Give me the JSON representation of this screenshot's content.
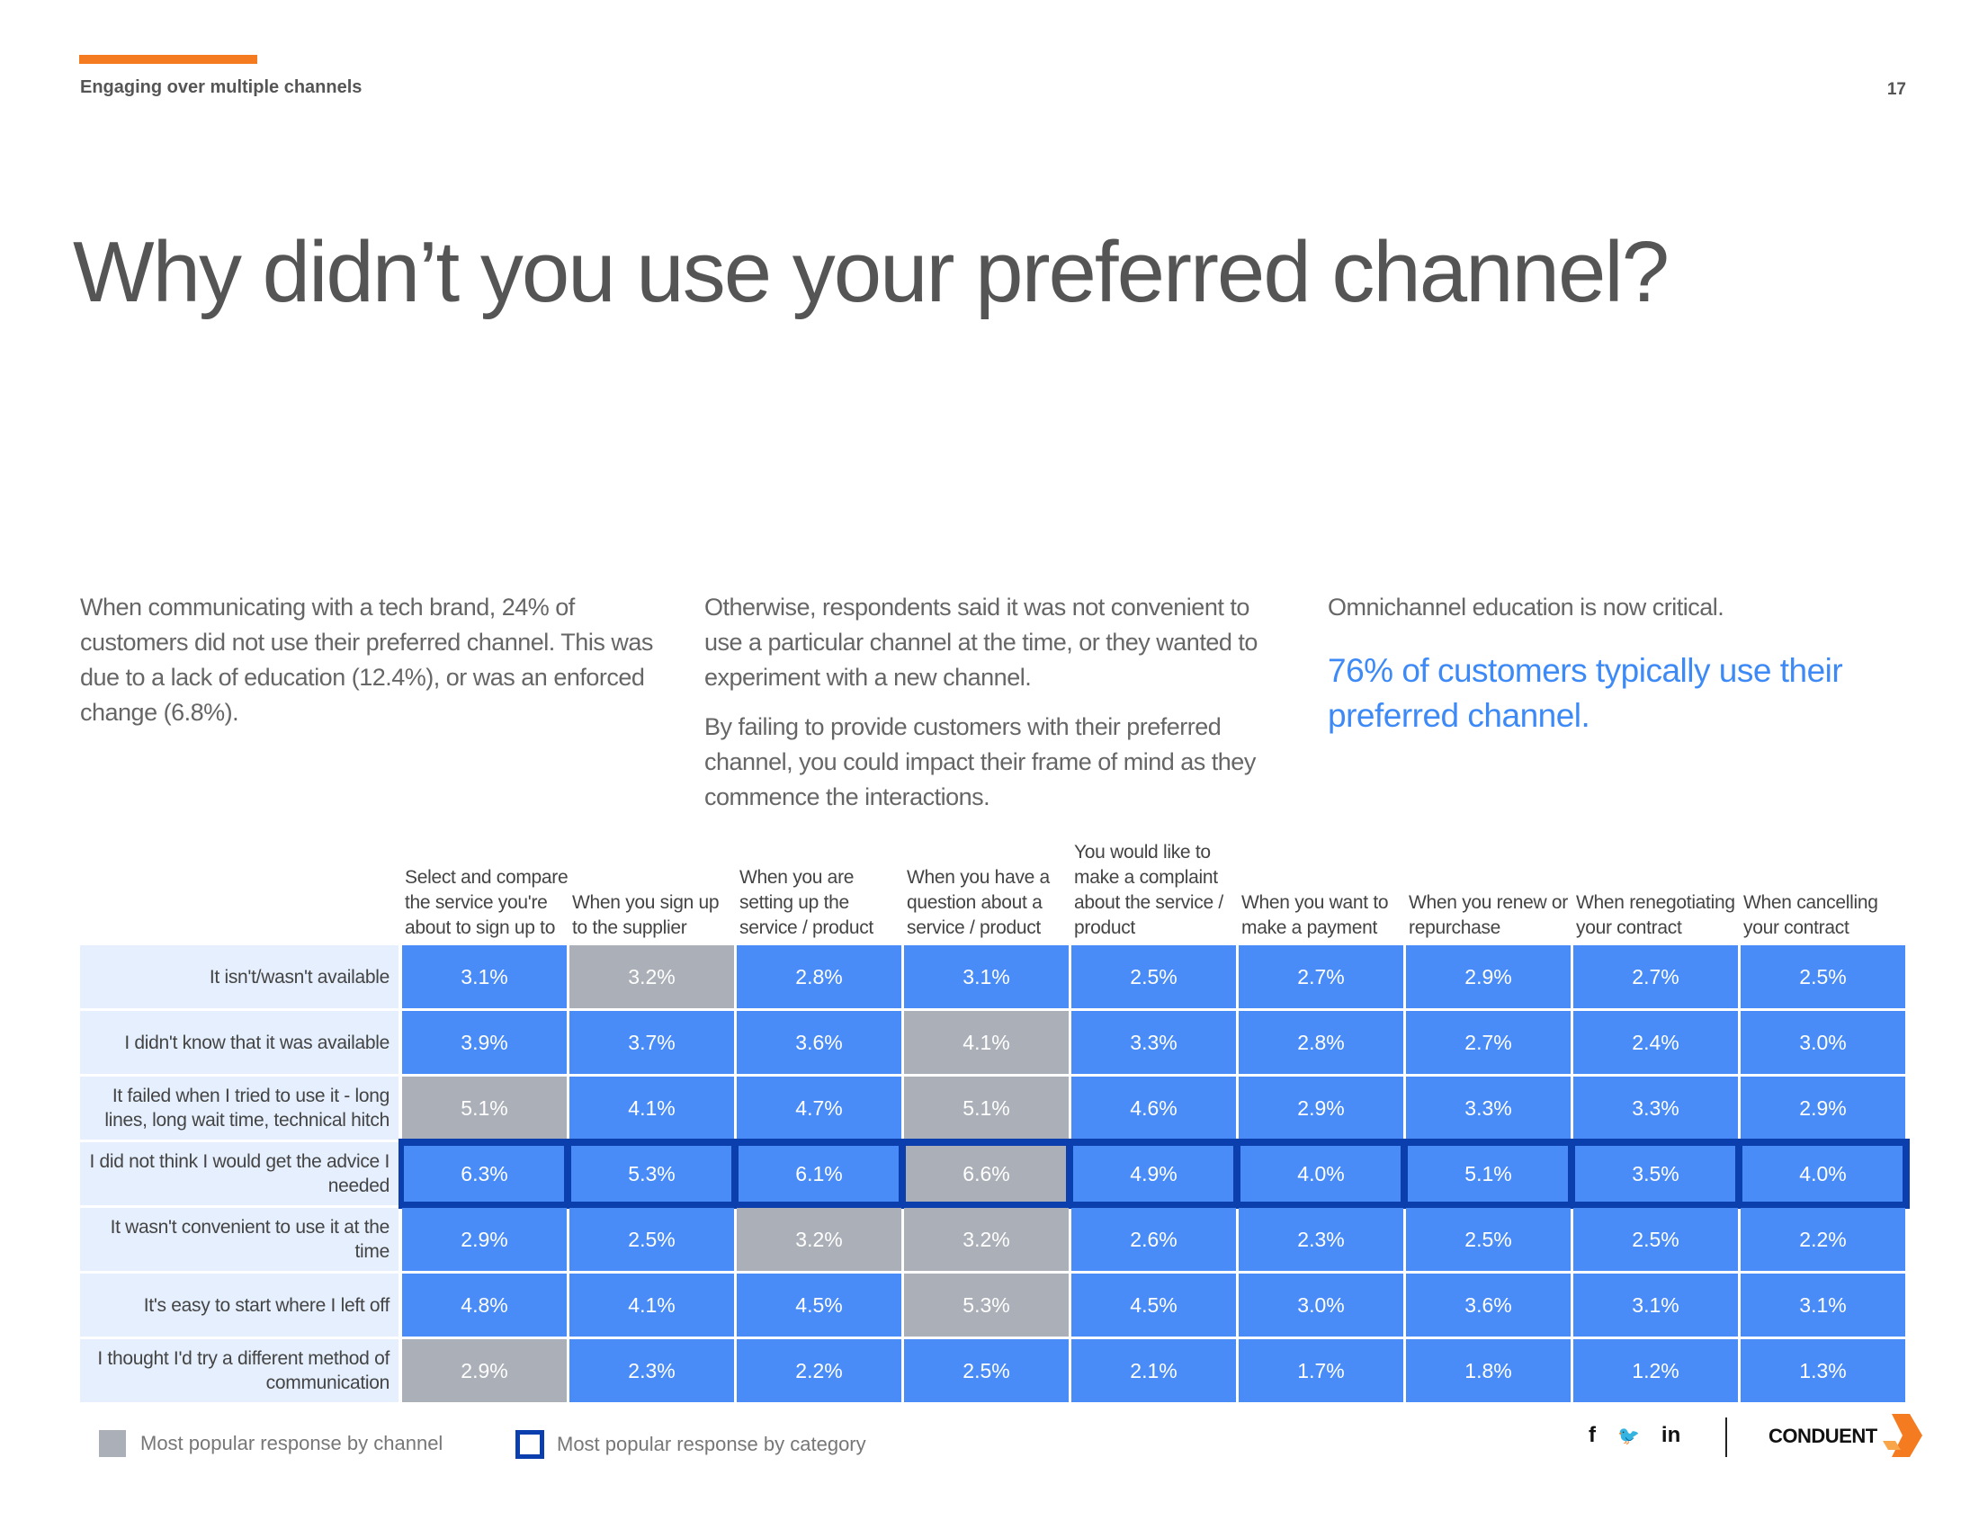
{
  "header": {
    "section_label": "Engaging over multiple channels",
    "page_number": "17"
  },
  "headline": "Why didn’t you use your preferred channel?",
  "intro": {
    "col1": "When communicating with a tech brand, 24% of customers did not use their preferred channel. This was due to a lack of education (12.4%), or was an enforced change (6.8%).",
    "col2_p1": "Otherwise, respondents said it was not convenient to use a particular channel at the time, or they wanted to experiment with a new channel.",
    "col2_p2": "By failing to provide customers with their preferred channel, you could impact their frame of mind as they commence the interactions.",
    "col3_p1": "Omnichannel education is now critical.",
    "col3_highlight": "76% of customers typically use their preferred channel."
  },
  "chart_data": {
    "type": "table",
    "columns": [
      "Select and compare the service you're about to sign up to",
      "When you sign up to the supplier",
      "When you are setting up the service / product",
      "When you have a question about a service / product",
      "You would like to make a complaint about the service / product",
      "When you want to make a payment",
      "When you renew or repurchase",
      "When renegotiating your contract",
      "When cancelling your contract"
    ],
    "rows": [
      {
        "label": "It isn't/wasn't available",
        "values": [
          "3.1%",
          "3.2%",
          "2.8%",
          "3.1%",
          "2.5%",
          "2.7%",
          "2.9%",
          "2.7%",
          "2.5%"
        ]
      },
      {
        "label": "I didn't know that it was available",
        "values": [
          "3.9%",
          "3.7%",
          "3.6%",
          "4.1%",
          "3.3%",
          "2.8%",
          "2.7%",
          "2.4%",
          "3.0%"
        ]
      },
      {
        "label": "It failed when I tried to use it - long lines, long wait time, technical hitch",
        "values": [
          "5.1%",
          "4.1%",
          "4.7%",
          "5.1%",
          "4.6%",
          "2.9%",
          "3.3%",
          "3.3%",
          "2.9%"
        ]
      },
      {
        "label": "I did not think I would get the advice I needed",
        "values": [
          "6.3%",
          "5.3%",
          "6.1%",
          "6.6%",
          "4.9%",
          "4.0%",
          "5.1%",
          "3.5%",
          "4.0%"
        ]
      },
      {
        "label": "It wasn't convenient to use it at the time",
        "values": [
          "2.9%",
          "2.5%",
          "3.2%",
          "3.2%",
          "2.6%",
          "2.3%",
          "2.5%",
          "2.5%",
          "2.2%"
        ]
      },
      {
        "label": "It's easy to start where I left off",
        "values": [
          "4.8%",
          "4.1%",
          "4.5%",
          "5.3%",
          "4.5%",
          "3.0%",
          "3.6%",
          "3.1%",
          "3.1%"
        ]
      },
      {
        "label": "I thought I'd try a different method of communication",
        "values": [
          "2.9%",
          "2.3%",
          "2.2%",
          "2.5%",
          "2.1%",
          "1.7%",
          "1.8%",
          "1.2%",
          "1.3%"
        ]
      }
    ],
    "gray_cells": [
      [
        0,
        1
      ],
      [
        1,
        3
      ],
      [
        2,
        0
      ],
      [
        2,
        3
      ],
      [
        3,
        3
      ],
      [
        4,
        2
      ],
      [
        4,
        3
      ],
      [
        5,
        3
      ],
      [
        6,
        0
      ]
    ],
    "highlighted_row": 3,
    "colors": {
      "blue": "#4a8cf7",
      "gray": "#abafb8",
      "outline": "#0b3fae",
      "label_bg": "#e5effd"
    }
  },
  "legend": {
    "gray_label": "Most popular response by channel",
    "outline_label": "Most popular response by category"
  },
  "footer": {
    "social": [
      "f",
      "🐦",
      "in"
    ],
    "brand": "CONDUENT"
  }
}
